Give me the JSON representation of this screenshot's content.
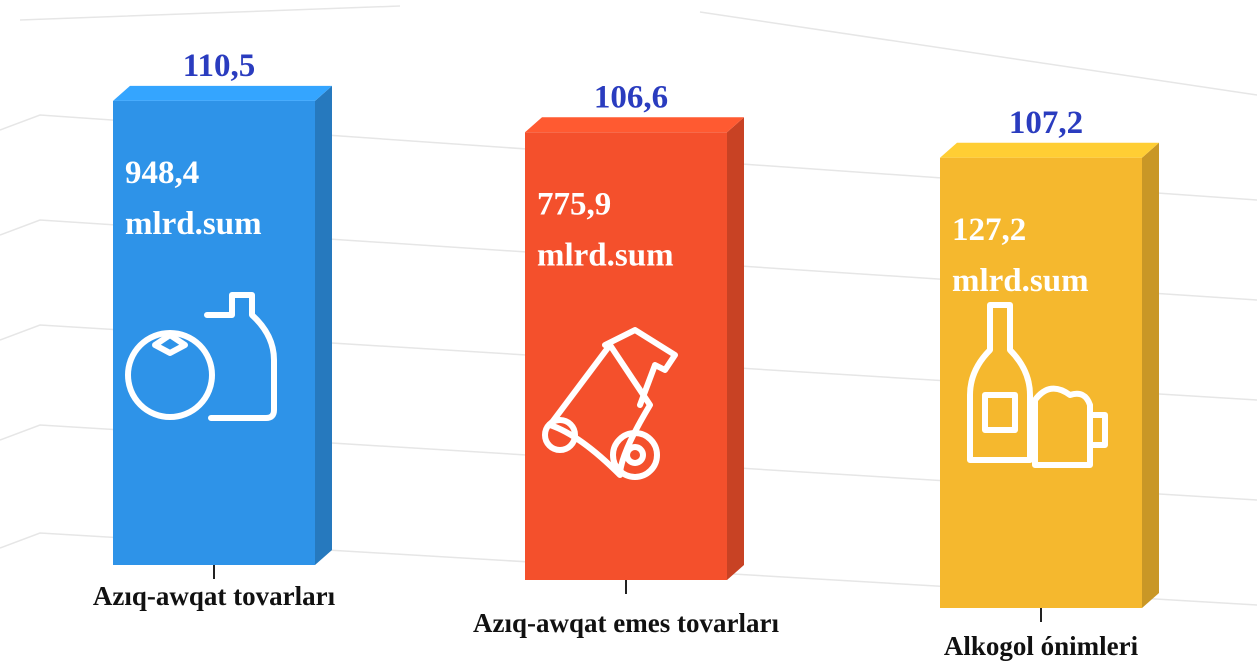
{
  "chart_data": {
    "type": "bar",
    "categories": [
      "Azıq-awqat tovarları",
      "Azıq-awqat emes tovarları",
      "Alkogol ónimleri"
    ],
    "values": [
      110.5,
      106.6,
      107.2
    ],
    "value_labels": [
      "110,5",
      "106,6",
      "107,2"
    ],
    "amounts": [
      948.4,
      775.9,
      127.2
    ],
    "amount_labels": [
      "948,4",
      "775,9",
      "127,2"
    ],
    "amount_unit": "mlrd.sum",
    "colors": [
      "#2e93e8",
      "#f4502c",
      "#f5b82e"
    ]
  }
}
